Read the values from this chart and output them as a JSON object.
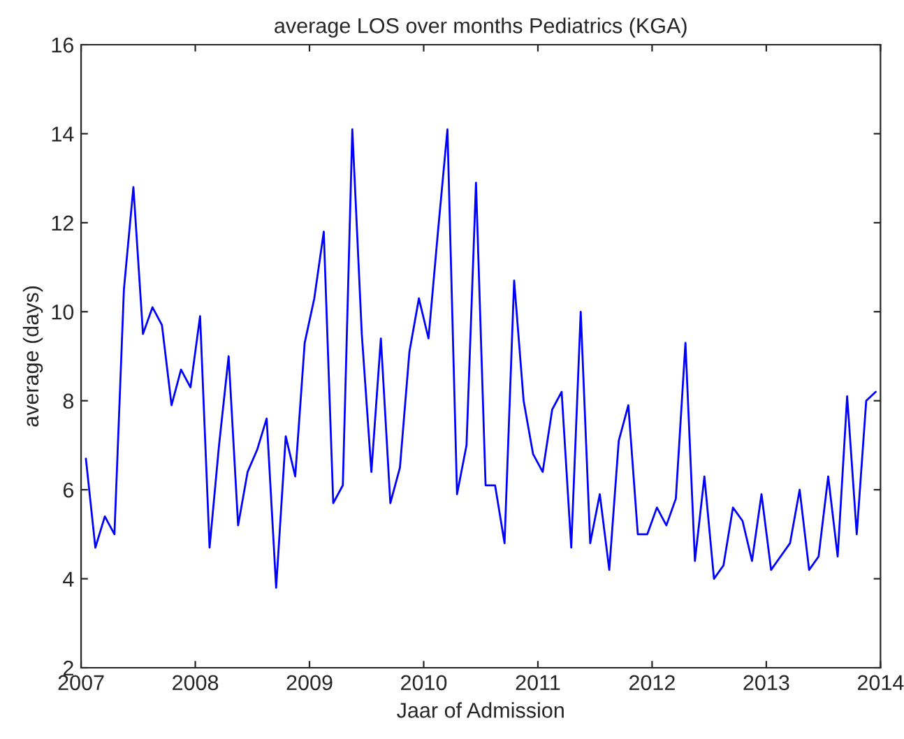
{
  "chart_data": {
    "type": "line",
    "title": "average LOS over months Pediatrics (KGA)",
    "xlabel": "Jaar of Admission",
    "ylabel": "average (days)",
    "x": [
      2007.042,
      2007.125,
      2007.208,
      2007.292,
      2007.375,
      2007.458,
      2007.542,
      2007.625,
      2007.708,
      2007.792,
      2007.875,
      2007.958,
      2008.042,
      2008.125,
      2008.208,
      2008.292,
      2008.375,
      2008.458,
      2008.542,
      2008.625,
      2008.708,
      2008.792,
      2008.875,
      2008.958,
      2009.042,
      2009.125,
      2009.208,
      2009.292,
      2009.375,
      2009.458,
      2009.542,
      2009.625,
      2009.708,
      2009.792,
      2009.875,
      2009.958,
      2010.042,
      2010.125,
      2010.208,
      2010.292,
      2010.375,
      2010.458,
      2010.542,
      2010.625,
      2010.708,
      2010.792,
      2010.875,
      2010.958,
      2011.042,
      2011.125,
      2011.208,
      2011.292,
      2011.375,
      2011.458,
      2011.542,
      2011.625,
      2011.708,
      2011.792,
      2011.875,
      2011.958,
      2012.042,
      2012.125,
      2012.208,
      2012.292,
      2012.375,
      2012.458,
      2012.542,
      2012.625,
      2012.708,
      2012.792,
      2012.875,
      2012.958,
      2013.042,
      2013.125,
      2013.208,
      2013.292,
      2013.375,
      2013.458,
      2013.542,
      2013.625,
      2013.708,
      2013.792,
      2013.875,
      2013.958
    ],
    "series": [
      {
        "color": "#0000ff",
        "values": [
          6.7,
          4.7,
          5.4,
          5.0,
          10.5,
          12.8,
          9.5,
          10.1,
          9.7,
          7.9,
          8.7,
          8.3,
          9.9,
          4.7,
          7.0,
          9.0,
          5.2,
          6.4,
          6.9,
          7.6,
          3.8,
          7.2,
          6.3,
          9.3,
          10.3,
          11.8,
          5.7,
          6.1,
          14.1,
          9.5,
          6.4,
          9.4,
          5.7,
          6.5,
          9.1,
          10.3,
          9.4,
          11.8,
          14.1,
          5.9,
          7.0,
          12.9,
          6.1,
          6.1,
          4.8,
          10.7,
          8.0,
          6.8,
          6.4,
          7.8,
          8.2,
          4.7,
          10.0,
          4.8,
          5.9,
          4.2,
          7.1,
          7.9,
          5.0,
          5.0,
          5.6,
          5.2,
          5.8,
          9.3,
          4.4,
          6.3,
          4.0,
          4.3,
          5.6,
          5.3,
          4.4,
          5.9,
          4.2,
          4.5,
          4.8,
          6.0,
          4.2,
          4.5,
          6.3,
          4.5,
          8.1,
          5.0,
          8.0,
          8.2
        ]
      }
    ],
    "xlim": [
      2007,
      2014
    ],
    "xticks": [
      2007,
      2008,
      2009,
      2010,
      2011,
      2012,
      2013,
      2014
    ],
    "ylim": [
      2,
      16
    ],
    "yticks": [
      2,
      4,
      6,
      8,
      10,
      12,
      14,
      16
    ],
    "grid": false,
    "legend": false,
    "marker": "none",
    "line_style": "solid"
  }
}
